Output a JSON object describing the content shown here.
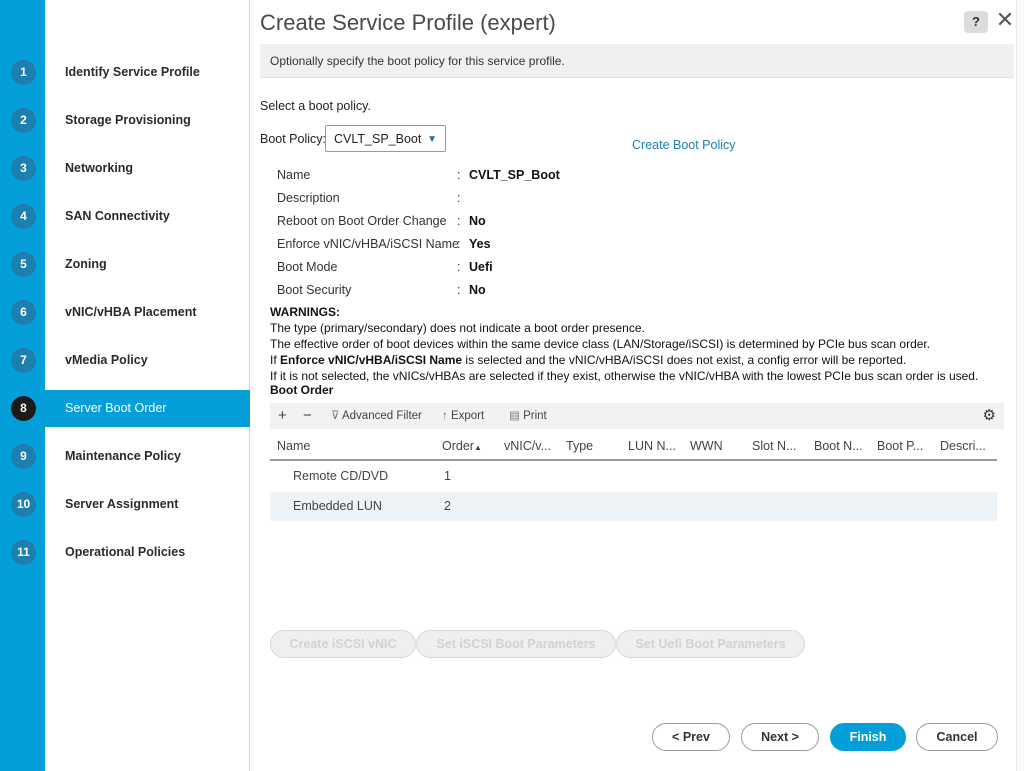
{
  "wizard": {
    "steps": [
      {
        "num": "1",
        "label": "Identify Service Profile"
      },
      {
        "num": "2",
        "label": "Storage Provisioning"
      },
      {
        "num": "3",
        "label": "Networking"
      },
      {
        "num": "4",
        "label": "SAN Connectivity"
      },
      {
        "num": "5",
        "label": "Zoning"
      },
      {
        "num": "6",
        "label": "vNIC/vHBA Placement"
      },
      {
        "num": "7",
        "label": "vMedia Policy"
      },
      {
        "num": "8",
        "label": "Server Boot Order"
      },
      {
        "num": "9",
        "label": "Maintenance Policy"
      },
      {
        "num": "10",
        "label": "Server Assignment"
      },
      {
        "num": "11",
        "label": "Operational Policies"
      }
    ],
    "active_step": "8"
  },
  "header": {
    "title": "Create Service Profile (expert)",
    "help_label": "?",
    "close_label": "✕"
  },
  "banner": "Optionally specify the boot policy for this service profile.",
  "boot_policy": {
    "prompt": "Select a boot policy.",
    "label": "Boot Policy:",
    "selected": "CVLT_SP_Boot",
    "create_link": "Create Boot Policy"
  },
  "properties": [
    {
      "key": "Name",
      "value": "CVLT_SP_Boot"
    },
    {
      "key": "Description",
      "value": ""
    },
    {
      "key": "Reboot on Boot Order Change",
      "value": "No"
    },
    {
      "key": "Enforce vNIC/vHBA/iSCSI Name",
      "value": "Yes"
    },
    {
      "key": "Boot Mode",
      "value": "Uefi"
    },
    {
      "key": "Boot Security",
      "value": "No"
    }
  ],
  "warnings": {
    "title": "WARNINGS:",
    "line1": "The type (primary/secondary) does not indicate a boot order presence.",
    "line2": "The effective order of boot devices within the same device class (LAN/Storage/iSCSI) is determined by PCIe bus scan order.",
    "line3_prefix": "If ",
    "line3_bold": "Enforce vNIC/vHBA/iSCSI Name",
    "line3_suffix": " is selected and the vNIC/vHBA/iSCSI does not exist, a config error will be reported.",
    "line4": "If it is not selected, the vNICs/vHBAs are selected if they exist, otherwise the vNIC/vHBA with the lowest PCIe bus scan order is used."
  },
  "boot_order": {
    "title": "Boot Order",
    "toolbar": {
      "add": "+",
      "remove": "−",
      "filter": "Advanced Filter",
      "export": "Export",
      "print": "Print"
    },
    "columns": [
      "Name",
      "Order",
      "vNIC/v...",
      "Type",
      "LUN N...",
      "WWN",
      "Slot N...",
      "Boot N...",
      "Boot P...",
      "Descri..."
    ],
    "sort_indicator": "▲",
    "rows": [
      {
        "name": "Remote CD/DVD",
        "order": "1"
      },
      {
        "name": "Embedded LUN",
        "order": "2"
      }
    ]
  },
  "actions": {
    "create_iscsi": "Create iSCSI vNIC",
    "set_iscsi": "Set iSCSI Boot Parameters",
    "set_uefi": "Set Uefi Boot Parameters"
  },
  "footer": {
    "prev": "< Prev",
    "next": "Next >",
    "finish": "Finish",
    "cancel": "Cancel"
  }
}
